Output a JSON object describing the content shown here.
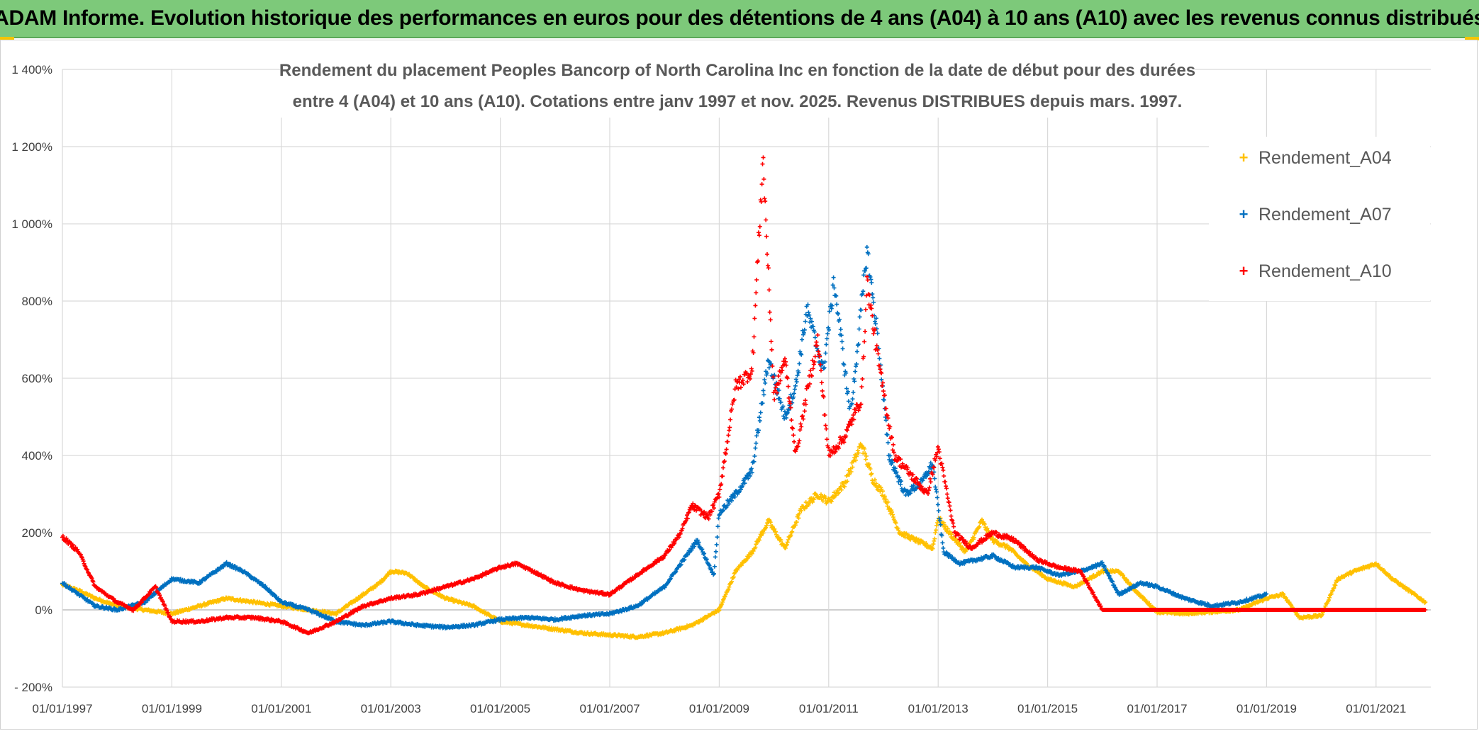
{
  "header": {
    "banner_title": "ADAM Informe. Evolution historique des performances en euros pour des détentions de 4 ans (A04) à 10 ans (A10) avec les revenus connus distribués"
  },
  "chart_data": {
    "type": "scatter",
    "title_line1": "Rendement du placement Peoples Bancorp of North Carolina Inc en fonction de la date de début pour des durées",
    "title_line2": "entre 4 (A04) et 10 ans (A10). Cotations entre janv 1997 et nov. 2025. Revenus DISTRIBUES depuis mars. 1997.",
    "xlabel": "",
    "ylabel": "",
    "x_tick_labels": [
      "01/01/1997",
      "01/01/1999",
      "01/01/2001",
      "01/01/2003",
      "01/01/2005",
      "01/01/2007",
      "01/01/2009",
      "01/01/2011",
      "01/01/2013",
      "01/01/2015",
      "01/01/2017",
      "01/01/2019",
      "01/01/2021"
    ],
    "y_tick_labels": [
      "- 200%",
      "0%",
      "200%",
      "400%",
      "600%",
      "800%",
      "1 000%",
      "1 200%",
      "1 400%"
    ],
    "xlim": [
      1997.0,
      2022.0
    ],
    "ylim": [
      -200,
      1400
    ],
    "grid": true,
    "legend_position": "top-right",
    "series": [
      {
        "name": "Rendement_A04",
        "color": "#ffc000",
        "x": [
          1997.0,
          1997.3,
          1997.6,
          1998.0,
          1998.5,
          1999.0,
          1999.5,
          2000.0,
          2000.5,
          2001.0,
          2001.5,
          2002.0,
          2002.5,
          2002.8,
          2003.0,
          2003.3,
          2003.6,
          2004.0,
          2004.5,
          2005.0,
          2005.5,
          2006.0,
          2006.5,
          2007.0,
          2007.5,
          2008.0,
          2008.5,
          2009.0,
          2009.3,
          2009.6,
          2009.9,
          2010.2,
          2010.5,
          2010.8,
          2011.0,
          2011.3,
          2011.6,
          2011.8,
          2012.0,
          2012.3,
          2012.6,
          2012.9,
          2013.0,
          2013.2,
          2013.5,
          2013.8,
          2014.0,
          2014.3,
          2014.6,
          2015.0,
          2015.5,
          2016.0,
          2016.3,
          2016.6,
          2017.0,
          2017.5,
          2018.0,
          2018.5,
          2019.0,
          2019.3,
          2019.6,
          2020.0,
          2020.3,
          2020.6,
          2021.0,
          2021.3,
          2021.6,
          2021.9
        ],
        "values": [
          65,
          50,
          30,
          10,
          0,
          -10,
          10,
          30,
          20,
          10,
          0,
          -10,
          40,
          70,
          100,
          95,
          60,
          30,
          10,
          -30,
          -40,
          -50,
          -60,
          -65,
          -70,
          -60,
          -40,
          0,
          100,
          150,
          230,
          160,
          260,
          300,
          280,
          330,
          430,
          340,
          300,
          200,
          180,
          160,
          240,
          200,
          150,
          230,
          180,
          160,
          120,
          80,
          60,
          100,
          100,
          50,
          -5,
          -10,
          -5,
          0,
          30,
          40,
          -20,
          -15,
          80,
          100,
          120,
          80,
          50,
          20
        ]
      },
      {
        "name": "Rendement_A07",
        "color": "#0070c0",
        "x": [
          1997.0,
          1997.3,
          1997.6,
          1998.0,
          1998.5,
          1999.0,
          1999.5,
          2000.0,
          2000.3,
          2000.7,
          2001.0,
          2001.5,
          2002.0,
          2002.5,
          2003.0,
          2003.5,
          2004.0,
          2004.5,
          2005.0,
          2005.5,
          2006.0,
          2006.5,
          2007.0,
          2007.5,
          2008.0,
          2008.3,
          2008.6,
          2008.9,
          2009.0,
          2009.3,
          2009.6,
          2009.9,
          2010.2,
          2010.4,
          2010.6,
          2010.9,
          2011.1,
          2011.4,
          2011.7,
          2011.9,
          2012.1,
          2012.4,
          2012.7,
          2012.9,
          2013.1,
          2013.4,
          2013.7,
          2014.0,
          2014.4,
          2014.8,
          2015.2,
          2015.6,
          2016.0,
          2016.3,
          2016.7,
          2017.0,
          2017.5,
          2018.0,
          2018.5,
          2019.0
        ],
        "values": [
          70,
          40,
          10,
          0,
          20,
          80,
          70,
          120,
          100,
          60,
          20,
          0,
          -30,
          -40,
          -30,
          -40,
          -45,
          -40,
          -25,
          -20,
          -25,
          -15,
          -10,
          10,
          60,
          120,
          180,
          90,
          250,
          300,
          360,
          650,
          500,
          580,
          780,
          620,
          850,
          500,
          930,
          700,
          400,
          300,
          330,
          380,
          150,
          120,
          130,
          140,
          110,
          110,
          90,
          100,
          120,
          40,
          70,
          60,
          30,
          10,
          20,
          40
        ]
      },
      {
        "name": "Rendement_A10",
        "color": "#ff0000",
        "x": [
          1997.0,
          1997.3,
          1997.6,
          1998.0,
          1998.3,
          1998.7,
          1999.0,
          1999.5,
          2000.0,
          2000.5,
          2001.0,
          2001.5,
          2002.0,
          2002.5,
          2003.0,
          2003.5,
          2004.0,
          2004.5,
          2005.0,
          2005.3,
          2005.6,
          2006.0,
          2006.5,
          2007.0,
          2007.5,
          2008.0,
          2008.3,
          2008.5,
          2008.8,
          2009.0,
          2009.3,
          2009.6,
          2009.8,
          2010.0,
          2010.2,
          2010.4,
          2010.6,
          2010.8,
          2011.0,
          2011.3,
          2011.6,
          2011.7,
          2011.9,
          2012.2,
          2012.5,
          2012.8,
          2013.0,
          2013.3,
          2013.6,
          2014.0,
          2014.4,
          2014.8,
          2015.2,
          2015.6,
          2016.0,
          2016.5,
          2017.0,
          2017.5,
          2018.0,
          2018.5,
          2019.0,
          2019.5,
          2020.0,
          2020.5,
          2021.0,
          2021.5,
          2021.9
        ],
        "values": [
          190,
          150,
          60,
          20,
          0,
          60,
          -30,
          -30,
          -20,
          -20,
          -30,
          -60,
          -30,
          10,
          30,
          40,
          60,
          80,
          110,
          120,
          100,
          70,
          50,
          40,
          90,
          140,
          200,
          270,
          240,
          300,
          580,
          620,
          1170,
          550,
          650,
          400,
          560,
          700,
          400,
          450,
          550,
          850,
          650,
          400,
          350,
          300,
          420,
          200,
          160,
          200,
          180,
          130,
          110,
          100,
          0,
          0,
          0,
          0,
          0,
          0,
          0,
          0,
          0,
          0,
          0,
          0,
          0
        ]
      }
    ]
  }
}
